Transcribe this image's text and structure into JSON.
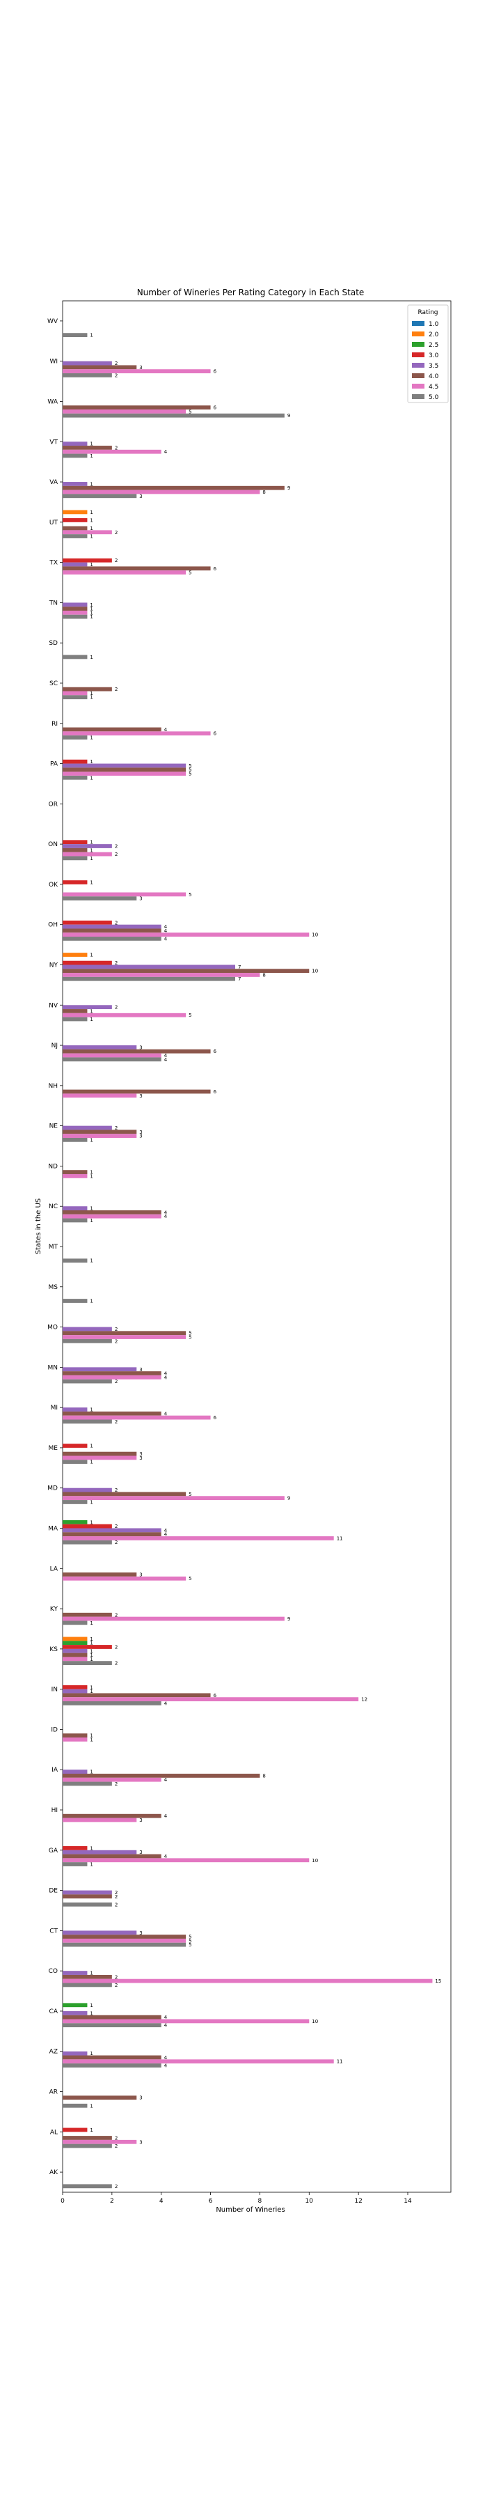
{
  "chart_data": {
    "type": "bar",
    "orientation": "horizontal",
    "title": "Number of Wineries Per Rating Category in Each State",
    "xlabel": "Number of Wineries",
    "ylabel": "States in the US",
    "xlim": [
      0,
      15.75
    ],
    "xticks": [
      0,
      2,
      4,
      6,
      8,
      10,
      12,
      14
    ],
    "grid": false,
    "legend": {
      "title": "Rating",
      "placement": "top-right"
    },
    "categories": [
      "AK",
      "AL",
      "AR",
      "AZ",
      "CA",
      "CO",
      "CT",
      "DE",
      "GA",
      "HI",
      "IA",
      "ID",
      "IN",
      "KS",
      "KY",
      "LA",
      "MA",
      "MD",
      "ME",
      "MI",
      "MN",
      "MO",
      "MS",
      "MT",
      "NC",
      "ND",
      "NE",
      "NH",
      "NJ",
      "NV",
      "NY",
      "OH",
      "OK",
      "ON",
      "OR",
      "PA",
      "RI",
      "SC",
      "SD",
      "TN",
      "TX",
      "UT",
      "VA",
      "VT",
      "WA",
      "WI",
      "WV"
    ],
    "series": [
      {
        "name": "1.0",
        "color": "#1f77b4",
        "values": [
          0,
          0,
          0,
          0,
          0,
          0,
          0,
          0,
          0,
          0,
          0,
          0,
          0,
          0,
          0,
          0,
          0,
          0,
          0,
          0,
          0,
          0,
          0,
          0,
          0,
          0,
          0,
          0,
          0,
          0,
          0,
          0,
          0,
          0,
          0,
          0,
          0,
          0,
          0,
          0,
          0,
          0,
          0,
          0,
          0,
          0,
          0
        ]
      },
      {
        "name": "2.0",
        "color": "#ff7f0e",
        "values": [
          0,
          0,
          0,
          0,
          0,
          0,
          0,
          0,
          0,
          0,
          0,
          0,
          0,
          1,
          0,
          0,
          0,
          0,
          0,
          0,
          0,
          0,
          0,
          0,
          0,
          0,
          0,
          0,
          0,
          0,
          1,
          0,
          0,
          0,
          0,
          0,
          0,
          0,
          0,
          0,
          0,
          1,
          0,
          0,
          0,
          0,
          0
        ]
      },
      {
        "name": "2.5",
        "color": "#2ca02c",
        "values": [
          0,
          0,
          0,
          0,
          1,
          0,
          0,
          0,
          0,
          0,
          0,
          0,
          0,
          1,
          0,
          0,
          1,
          0,
          0,
          0,
          0,
          0,
          0,
          0,
          0,
          0,
          0,
          0,
          0,
          0,
          0,
          0,
          0,
          0,
          0,
          0,
          0,
          0,
          0,
          0,
          0,
          0,
          0,
          0,
          0,
          0,
          0
        ]
      },
      {
        "name": "3.0",
        "color": "#d62728",
        "values": [
          0,
          1,
          0,
          0,
          0,
          0,
          0,
          0,
          1,
          0,
          0,
          0,
          1,
          2,
          0,
          0,
          2,
          0,
          1,
          0,
          0,
          0,
          0,
          0,
          0,
          0,
          0,
          0,
          0,
          0,
          2,
          2,
          1,
          1,
          0,
          1,
          0,
          0,
          0,
          0,
          2,
          1,
          0,
          0,
          0,
          0,
          0
        ]
      },
      {
        "name": "3.5",
        "color": "#9467bd",
        "values": [
          0,
          0,
          0,
          1,
          1,
          1,
          3,
          2,
          3,
          0,
          1,
          0,
          1,
          1,
          0,
          0,
          4,
          2,
          0,
          1,
          3,
          2,
          0,
          0,
          1,
          0,
          2,
          0,
          3,
          2,
          7,
          4,
          0,
          2,
          0,
          5,
          0,
          0,
          0,
          1,
          1,
          0,
          1,
          1,
          0,
          2,
          0
        ]
      },
      {
        "name": "4.0",
        "color": "#8c564b",
        "values": [
          0,
          2,
          3,
          4,
          4,
          2,
          5,
          2,
          4,
          4,
          8,
          1,
          6,
          1,
          2,
          3,
          4,
          5,
          3,
          4,
          4,
          5,
          0,
          0,
          4,
          1,
          3,
          6,
          6,
          1,
          10,
          4,
          0,
          1,
          0,
          5,
          4,
          2,
          0,
          1,
          6,
          1,
          9,
          2,
          6,
          3,
          0
        ]
      },
      {
        "name": "4.5",
        "color": "#e377c2",
        "values": [
          0,
          3,
          0,
          11,
          10,
          15,
          5,
          0,
          10,
          3,
          4,
          1,
          12,
          1,
          9,
          5,
          11,
          9,
          3,
          6,
          4,
          5,
          0,
          0,
          4,
          1,
          3,
          3,
          4,
          5,
          8,
          10,
          5,
          2,
          0,
          5,
          6,
          1,
          0,
          1,
          5,
          2,
          8,
          4,
          5,
          6,
          0
        ]
      },
      {
        "name": "5.0",
        "color": "#7f7f7f",
        "values": [
          2,
          2,
          1,
          4,
          4,
          2,
          5,
          2,
          1,
          0,
          2,
          0,
          4,
          2,
          1,
          0,
          2,
          1,
          1,
          2,
          2,
          2,
          1,
          1,
          1,
          0,
          1,
          0,
          4,
          1,
          7,
          4,
          3,
          1,
          0,
          1,
          1,
          1,
          1,
          1,
          0,
          1,
          3,
          1,
          9,
          2,
          1
        ]
      }
    ]
  }
}
